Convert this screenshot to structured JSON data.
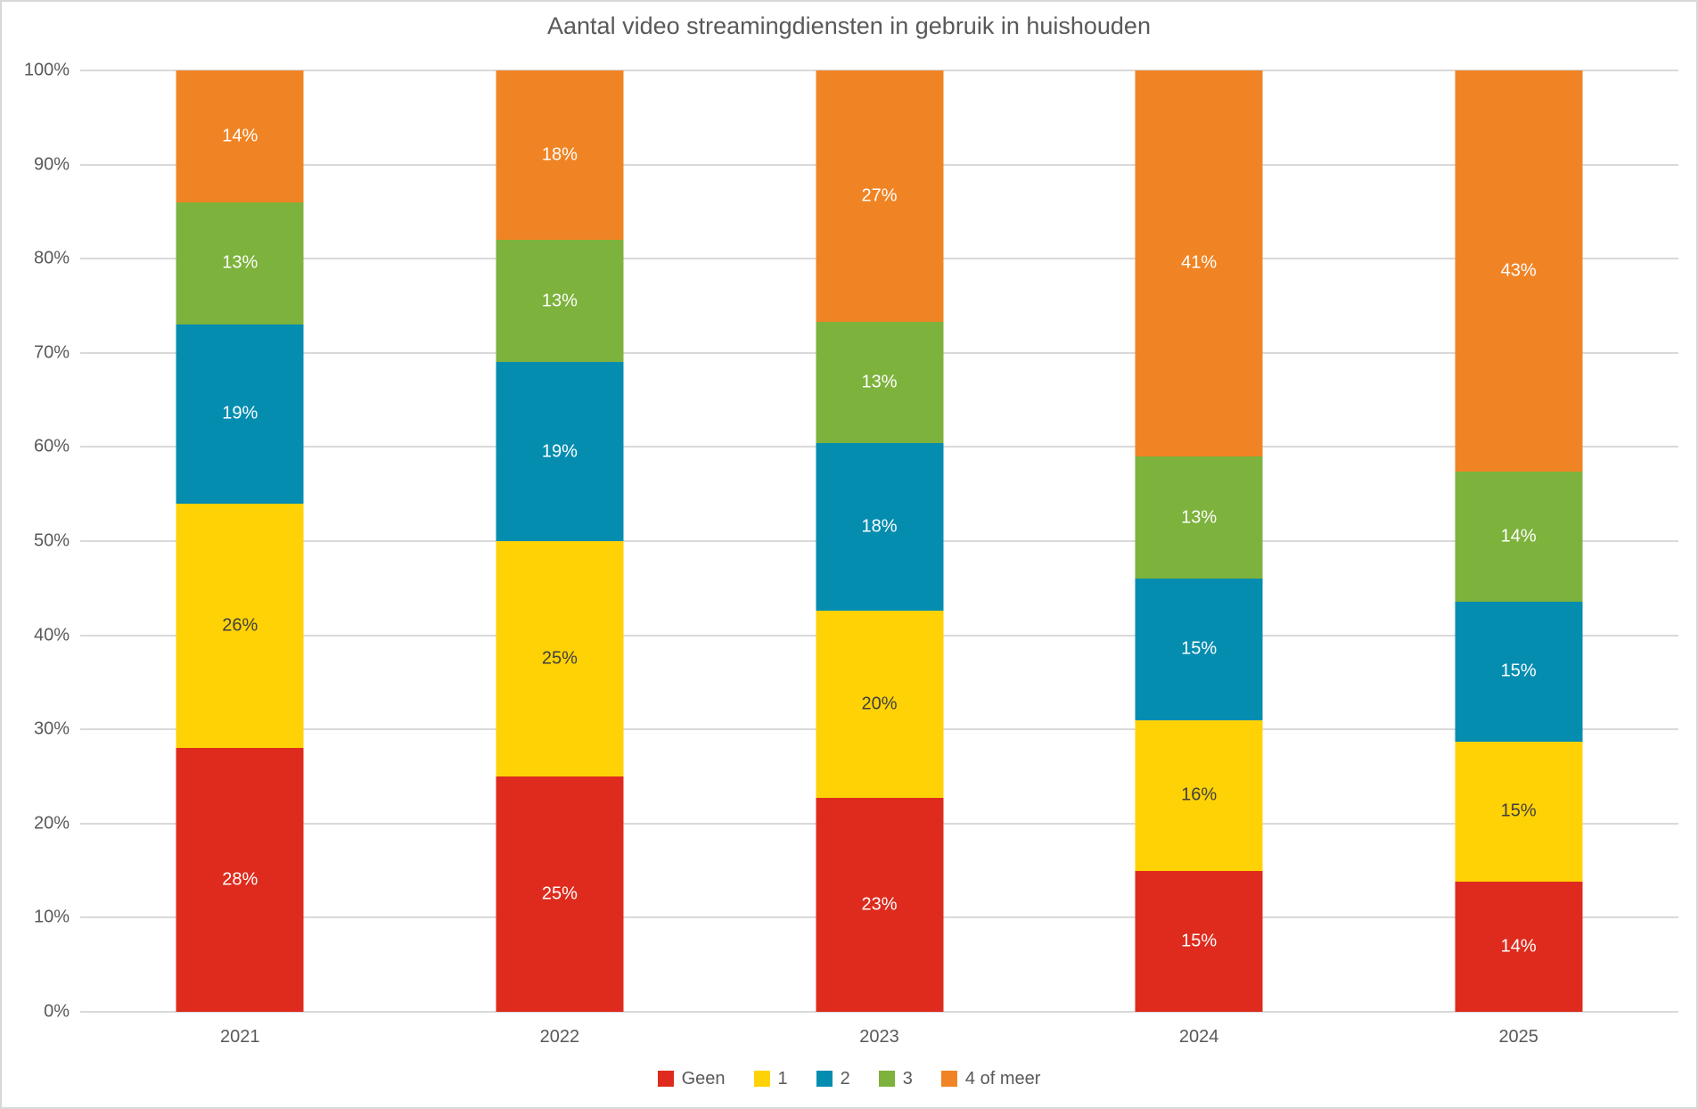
{
  "chart_data": {
    "type": "bar",
    "subtype": "stacked-100-percent-column",
    "title": "Aantal video streamingdiensten in gebruik in huishouden",
    "categories": [
      "2021",
      "2022",
      "2023",
      "2024",
      "2025"
    ],
    "series": [
      {
        "name": "Geen",
        "color": "#DE2B1D",
        "label_color": "#FFFFFF",
        "values": [
          28,
          25,
          23,
          15,
          14
        ]
      },
      {
        "name": "1",
        "color": "#FFD206",
        "label_color": "#3F3F3F",
        "values": [
          26,
          25,
          20,
          16,
          15
        ]
      },
      {
        "name": "2",
        "color": "#058DB0",
        "label_color": "#FFFFFF",
        "values": [
          19,
          19,
          18,
          15,
          15
        ]
      },
      {
        "name": "3",
        "color": "#7DB23C",
        "label_color": "#FFFFFF",
        "values": [
          13,
          13,
          13,
          13,
          14
        ]
      },
      {
        "name": "4 of meer",
        "color": "#F08424",
        "label_color": "#FFFFFF",
        "values": [
          14,
          18,
          27,
          41,
          43
        ]
      }
    ],
    "value_suffix": "%",
    "xlabel": "",
    "ylabel": "",
    "ylim": [
      0,
      100
    ],
    "y_tick_step": 10,
    "y_ticks": [
      "0%",
      "10%",
      "20%",
      "30%",
      "40%",
      "50%",
      "60%",
      "70%",
      "80%",
      "90%",
      "100%"
    ],
    "grid": true,
    "legend_position": "bottom"
  },
  "colors": {
    "background": "#FFFFFF",
    "canvas_border": "#D8D8D8",
    "gridline": "#D9D9D9",
    "axis_text": "#595959",
    "title_text": "#595959"
  }
}
